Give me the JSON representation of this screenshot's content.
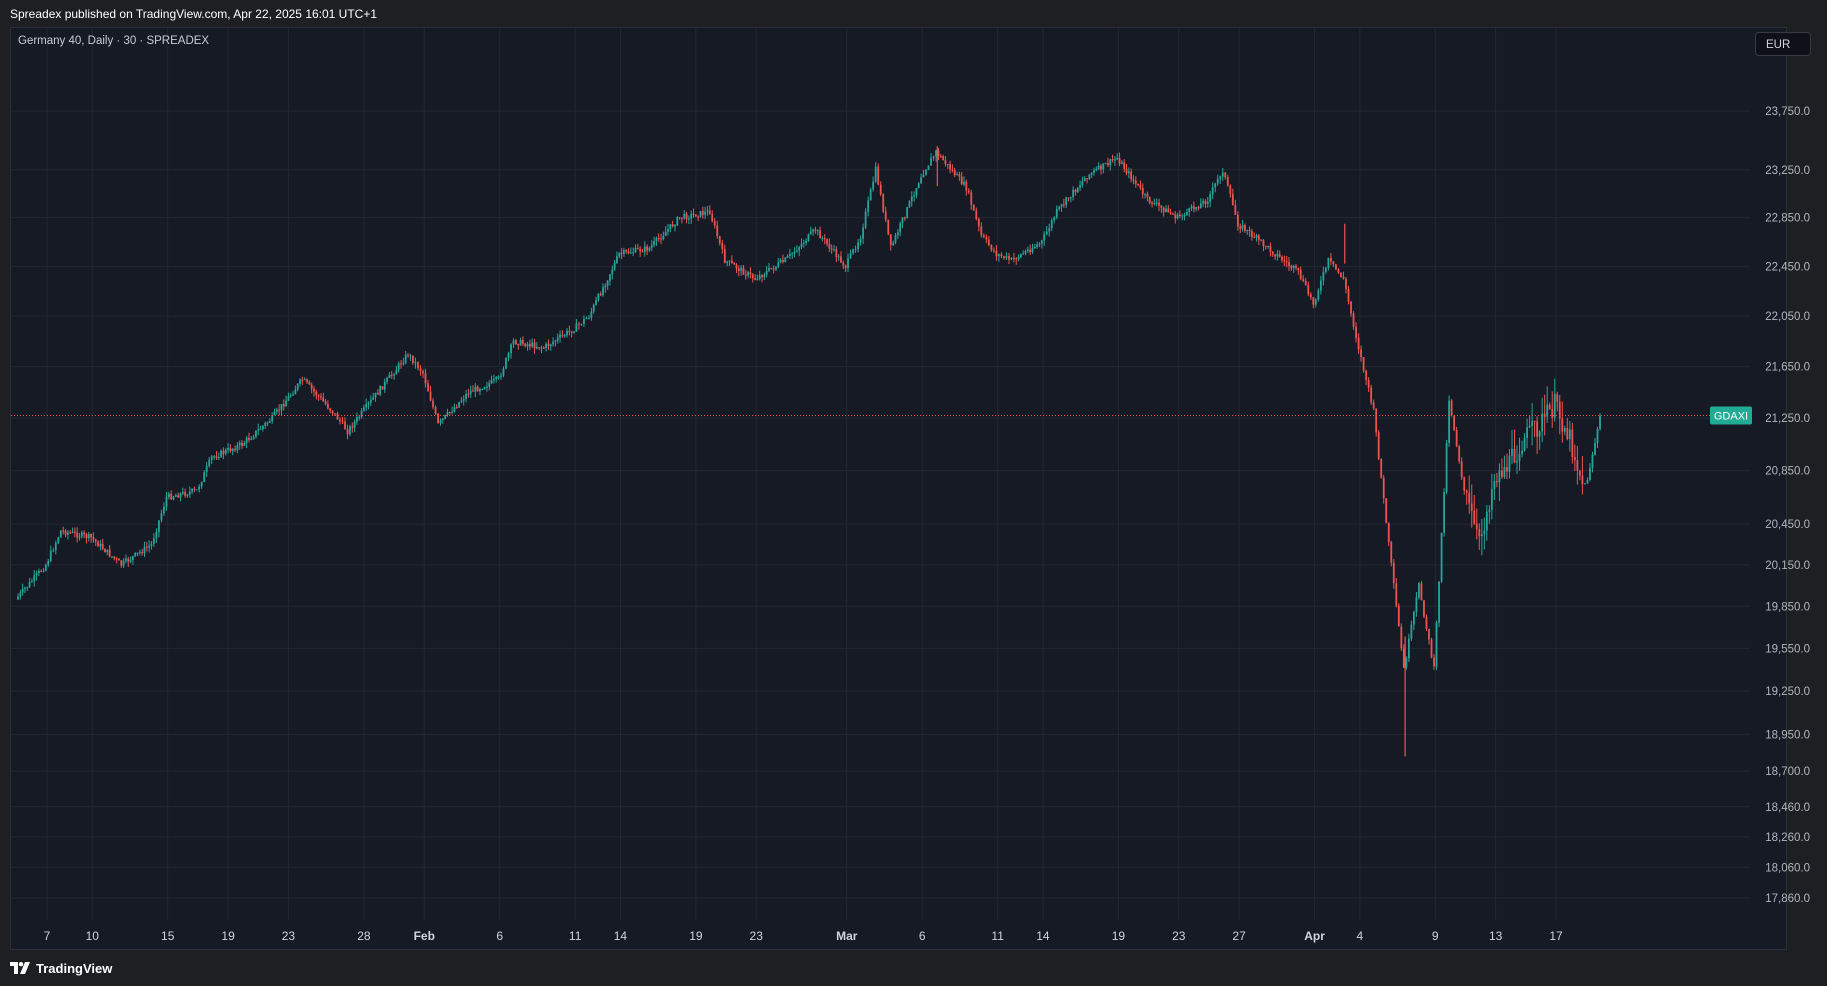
{
  "header": {
    "publish_line": "Spreadex published on TradingView.com, Apr 22, 2025 16:01 UTC+1"
  },
  "chart": {
    "symbol_title": "Germany 40, Daily · 30 · SPREADEX",
    "currency_button": "EUR",
    "last_price_label": "GDAXI"
  },
  "footer": {
    "brand": "TradingView"
  },
  "colors": {
    "background": "#161a25",
    "up": "#26a69a",
    "down": "#ef5350",
    "grid": "#242733",
    "label_bg": "#22ab94",
    "price_line": "#ef5350"
  },
  "chart_data": {
    "type": "candlestick",
    "title": "Germany 40, Daily · 30 · SPREADEX",
    "timeframe": "30",
    "y_axis_labels": [
      "23,750.0",
      "23,250.0",
      "22,850.0",
      "22,450.0",
      "22,050.0",
      "21,650.0",
      "21,250.0",
      "20,850.0",
      "20,450.0",
      "20,150.0",
      "19,850.0",
      "19,550.0",
      "19,250.0",
      "18,950.0",
      "18,700.0",
      "18,460.0",
      "18,260.0",
      "18,060.0",
      "17,860.0"
    ],
    "y_axis_values": [
      23750,
      23250,
      22850,
      22450,
      22050,
      21650,
      21250,
      20850,
      20450,
      20150,
      19850,
      19550,
      19250,
      18950,
      18700,
      18460,
      18260,
      18060,
      17860
    ],
    "y_scale": "log",
    "x_axis_labels": [
      "7",
      "10",
      "15",
      "19",
      "23",
      "28",
      "Feb",
      "6",
      "11",
      "14",
      "19",
      "23",
      "Mar",
      "6",
      "11",
      "14",
      "19",
      "23",
      "27",
      "Apr",
      "4",
      "9",
      "13",
      "17"
    ],
    "x_axis_dates": [
      "2025-01-07",
      "2025-01-10",
      "2025-01-15",
      "2025-01-19",
      "2025-01-23",
      "2025-01-28",
      "2025-02-01",
      "2025-02-06",
      "2025-02-11",
      "2025-02-14",
      "2025-02-19",
      "2025-02-23",
      "2025-03-01",
      "2025-03-06",
      "2025-03-11",
      "2025-03-14",
      "2025-03-19",
      "2025-03-23",
      "2025-03-27",
      "2025-04-01",
      "2025-04-04",
      "2025-04-09",
      "2025-04-13",
      "2025-04-17"
    ],
    "last_price": 21270,
    "grid": true,
    "series": [
      {
        "name": "GDAXI",
        "path": [
          {
            "date": "2025-01-05",
            "close": 19900
          },
          {
            "date": "2025-01-07",
            "close": 20150
          },
          {
            "date": "2025-01-08",
            "close": 20400
          },
          {
            "date": "2025-01-10",
            "close": 20350
          },
          {
            "date": "2025-01-12",
            "close": 20150
          },
          {
            "date": "2025-01-14",
            "close": 20300
          },
          {
            "date": "2025-01-15",
            "close": 20650
          },
          {
            "date": "2025-01-17",
            "close": 20700
          },
          {
            "date": "2025-01-18",
            "close": 20950
          },
          {
            "date": "2025-01-20",
            "close": 21050
          },
          {
            "date": "2025-01-22",
            "close": 21250
          },
          {
            "date": "2025-01-24",
            "close": 21550
          },
          {
            "date": "2025-01-26",
            "close": 21300
          },
          {
            "date": "2025-01-27",
            "close": 21150
          },
          {
            "date": "2025-01-29",
            "close": 21450
          },
          {
            "date": "2025-01-31",
            "close": 21750
          },
          {
            "date": "2025-02-01",
            "close": 21600
          },
          {
            "date": "2025-02-02",
            "close": 21200
          },
          {
            "date": "2025-02-04",
            "close": 21450
          },
          {
            "date": "2025-02-06",
            "close": 21550
          },
          {
            "date": "2025-02-07",
            "close": 21850
          },
          {
            "date": "2025-02-09",
            "close": 21800
          },
          {
            "date": "2025-02-11",
            "close": 21950
          },
          {
            "date": "2025-02-12",
            "close": 22050
          },
          {
            "date": "2025-02-14",
            "close": 22550
          },
          {
            "date": "2025-02-16",
            "close": 22600
          },
          {
            "date": "2025-02-18",
            "close": 22850
          },
          {
            "date": "2025-02-20",
            "close": 22900
          },
          {
            "date": "2025-02-21",
            "close": 22500
          },
          {
            "date": "2025-02-23",
            "close": 22350
          },
          {
            "date": "2025-02-25",
            "close": 22500
          },
          {
            "date": "2025-02-27",
            "close": 22750
          },
          {
            "date": "2025-03-01",
            "close": 22450
          },
          {
            "date": "2025-03-02",
            "close": 22700
          },
          {
            "date": "2025-03-03",
            "close": 23250
          },
          {
            "date": "2025-03-04",
            "close": 22600
          },
          {
            "date": "2025-03-06",
            "close": 23200
          },
          {
            "date": "2025-03-07",
            "close": 23400
          },
          {
            "date": "2025-03-09",
            "close": 23100
          },
          {
            "date": "2025-03-10",
            "close": 22700
          },
          {
            "date": "2025-03-11",
            "close": 22550
          },
          {
            "date": "2025-03-12",
            "close": 22500
          },
          {
            "date": "2025-03-14",
            "close": 22650
          },
          {
            "date": "2025-03-15",
            "close": 22900
          },
          {
            "date": "2025-03-17",
            "close": 23200
          },
          {
            "date": "2025-03-19",
            "close": 23350
          },
          {
            "date": "2025-03-21",
            "close": 23000
          },
          {
            "date": "2025-03-23",
            "close": 22850
          },
          {
            "date": "2025-03-25",
            "close": 23000
          },
          {
            "date": "2025-03-26",
            "close": 23250
          },
          {
            "date": "2025-03-27",
            "close": 22800
          },
          {
            "date": "2025-03-29",
            "close": 22600
          },
          {
            "date": "2025-03-31",
            "close": 22400
          },
          {
            "date": "2025-04-01",
            "close": 22150
          },
          {
            "date": "2025-04-02",
            "close": 22500
          },
          {
            "date": "2025-04-03",
            "close": 22350
          },
          {
            "date": "2025-04-04",
            "close": 21800
          },
          {
            "date": "2025-04-05",
            "close": 21300
          },
          {
            "date": "2025-04-06",
            "close": 20300
          },
          {
            "date": "2025-04-07",
            "close": 19400
          },
          {
            "date": "2025-04-08",
            "close": 20000
          },
          {
            "date": "2025-04-09",
            "close": 19400
          },
          {
            "date": "2025-04-10",
            "close": 21400
          },
          {
            "date": "2025-04-11",
            "close": 20700
          },
          {
            "date": "2025-04-12",
            "close": 20300
          },
          {
            "date": "2025-04-13",
            "close": 20800
          },
          {
            "date": "2025-04-14",
            "close": 20900
          },
          {
            "date": "2025-04-15",
            "close": 21100
          },
          {
            "date": "2025-04-16",
            "close": 21200
          },
          {
            "date": "2025-04-17",
            "close": 21350
          },
          {
            "date": "2025-04-18",
            "close": 21100
          },
          {
            "date": "2025-04-19",
            "close": 20700
          },
          {
            "date": "2025-04-20",
            "close": 21250
          }
        ],
        "extremes": [
          {
            "date": "2025-04-07",
            "low": 18800
          },
          {
            "date": "2025-04-03",
            "high": 22800
          },
          {
            "date": "2025-03-07",
            "high": 23450
          }
        ]
      }
    ]
  }
}
